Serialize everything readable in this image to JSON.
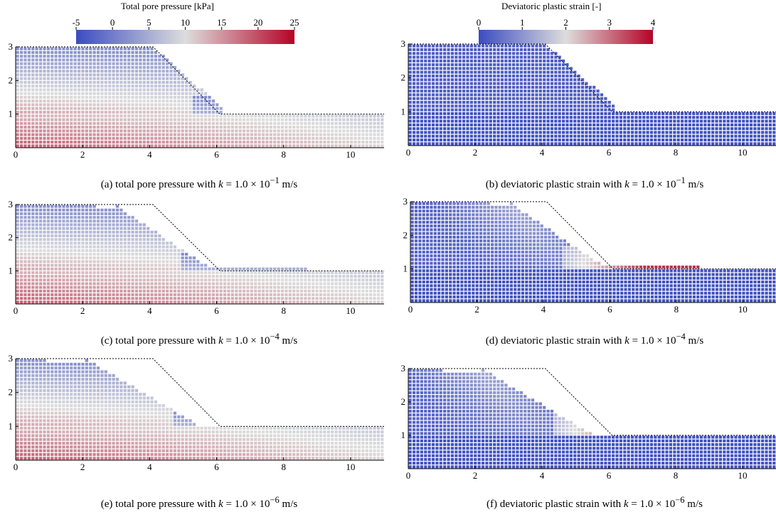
{
  "colorbars": [
    {
      "title": "Total pore pressure [kPa]",
      "ticks": [
        "-5",
        "0",
        "5",
        "10",
        "15",
        "20",
        "25"
      ],
      "min": -5,
      "max": 25
    },
    {
      "title": "Deviatoric plastic strain [-]",
      "ticks": [
        "0",
        "1",
        "2",
        "3",
        "4"
      ],
      "min": 0,
      "max": 4
    }
  ],
  "captions": [
    {
      "pre": "(a) total pore pressure with ",
      "var": "k",
      "eq": " = 1.0 × 10",
      "exp": "−1",
      "unit": " m/s"
    },
    {
      "pre": "(b) deviatoric plastic strain with ",
      "var": "k",
      "eq": " = 1.0 × 10",
      "exp": "−1",
      "unit": " m/s"
    },
    {
      "pre": "(c) total pore pressure with ",
      "var": "k",
      "eq": " = 1.0 × 10",
      "exp": "−4",
      "unit": " m/s"
    },
    {
      "pre": "(d) deviatoric plastic strain with ",
      "var": "k",
      "eq": " = 1.0 × 10",
      "exp": "−4",
      "unit": " m/s"
    },
    {
      "pre": "(e) total pore pressure with ",
      "var": "k",
      "eq": " = 1.0 × 10",
      "exp": "−6",
      "unit": " m/s"
    },
    {
      "pre": "(f) deviatoric plastic strain with ",
      "var": "k",
      "eq": " = 1.0 × 10",
      "exp": "−6",
      "unit": " m/s"
    }
  ],
  "colors": {
    "low": "#3b4cc0",
    "mid": "#dddddd",
    "high": "#b40426"
  },
  "chart_data": [
    {
      "type": "scatter",
      "panel": "a",
      "field": "total pore pressure",
      "permeability": "1.0 × 10^-1 m/s",
      "xlim": [
        0,
        11
      ],
      "ylim": [
        0,
        3
      ],
      "xticks": [
        "0",
        "2",
        "4",
        "6",
        "8",
        "10"
      ],
      "yticks": [
        "1",
        "2",
        "3"
      ],
      "initial_slope": [
        [
          0,
          3
        ],
        [
          4.1,
          3
        ],
        [
          6.1,
          1
        ],
        [
          11,
          1
        ]
      ],
      "runout": 6.2
    },
    {
      "type": "scatter",
      "panel": "b",
      "field": "deviatoric plastic strain",
      "permeability": "1.0 × 10^-1 m/s",
      "xlim": [
        0,
        11
      ],
      "ylim": [
        0,
        3
      ],
      "xticks": [
        "0",
        "2",
        "4",
        "6",
        "8",
        "10"
      ],
      "yticks": [
        "1",
        "2",
        "3"
      ],
      "initial_slope": [
        [
          0,
          3
        ],
        [
          4.1,
          3
        ],
        [
          6.1,
          1
        ],
        [
          11,
          1
        ]
      ],
      "runout": 6.2
    },
    {
      "type": "scatter",
      "panel": "c",
      "field": "total pore pressure",
      "permeability": "1.0 × 10^-4 m/s",
      "xlim": [
        0,
        11
      ],
      "ylim": [
        0,
        3
      ],
      "xticks": [
        "0",
        "2",
        "4",
        "6",
        "8",
        "10"
      ],
      "yticks": [
        "1",
        "2",
        "3"
      ],
      "initial_slope": [
        [
          0,
          3
        ],
        [
          4.1,
          3
        ],
        [
          6.1,
          1
        ],
        [
          11,
          1
        ]
      ],
      "runout": 8.7
    },
    {
      "type": "scatter",
      "panel": "d",
      "field": "deviatoric plastic strain",
      "permeability": "1.0 × 10^-4 m/s",
      "xlim": [
        0,
        11
      ],
      "ylim": [
        0,
        3
      ],
      "xticks": [
        "0",
        "2",
        "4",
        "6",
        "8",
        "10"
      ],
      "yticks": [
        "1",
        "2",
        "3"
      ],
      "initial_slope": [
        [
          0,
          3
        ],
        [
          4.1,
          3
        ],
        [
          6.1,
          1
        ],
        [
          11,
          1
        ]
      ],
      "runout": 8.7
    },
    {
      "type": "scatter",
      "panel": "e",
      "field": "total pore pressure",
      "permeability": "1.0 × 10^-6 m/s",
      "xlim": [
        0,
        11
      ],
      "ylim": [
        0,
        3
      ],
      "xticks": [
        "0",
        "2",
        "4",
        "6",
        "8",
        "10"
      ],
      "yticks": [
        "1",
        "2",
        "3"
      ],
      "initial_slope": [
        [
          0,
          3
        ],
        [
          4.1,
          3
        ],
        [
          6.1,
          1
        ],
        [
          11,
          1
        ]
      ],
      "runout": 10.6
    },
    {
      "type": "scatter",
      "panel": "f",
      "field": "deviatoric plastic strain",
      "permeability": "1.0 × 10^-6 m/s",
      "xlim": [
        0,
        11
      ],
      "ylim": [
        0,
        3
      ],
      "xticks": [
        "0",
        "2",
        "4",
        "6",
        "8",
        "10"
      ],
      "yticks": [
        "1",
        "2",
        "3"
      ],
      "initial_slope": [
        [
          0,
          3
        ],
        [
          4.1,
          3
        ],
        [
          6.1,
          1
        ],
        [
          11,
          1
        ]
      ],
      "runout": 10.4
    }
  ]
}
